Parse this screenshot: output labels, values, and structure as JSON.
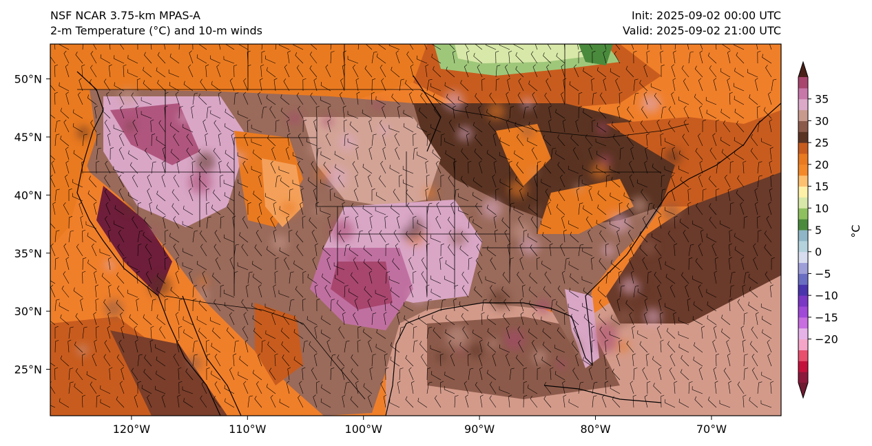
{
  "header": {
    "model": "NSF NCAR 3.75-km MPAS-A",
    "field": "2-m Temperature (°C) and 10-m winds",
    "init": "Init: 2025-09-02 00:00 UTC",
    "valid": "Valid: 2025-09-02 21:00 UTC"
  },
  "map": {
    "lon_range": [
      -127,
      -64
    ],
    "lat_range": [
      21,
      53
    ],
    "lon_ticks": [
      -120,
      -110,
      -100,
      -90,
      -80,
      -70
    ],
    "lon_labels": [
      "120°W",
      "110°W",
      "100°W",
      "90°W",
      "80°W",
      "70°W"
    ],
    "lat_ticks": [
      25,
      30,
      35,
      40,
      45,
      50
    ],
    "lat_labels": [
      "25°N",
      "30°N",
      "35°N",
      "40°N",
      "45°N",
      "50°N"
    ]
  },
  "colorbar": {
    "label": "°C",
    "tick_values": [
      -20,
      -15,
      -10,
      -5,
      0,
      5,
      10,
      15,
      20,
      25,
      30,
      35
    ],
    "tick_labels": [
      "−20",
      "−15",
      "−10",
      "−5",
      "0",
      "5",
      "10",
      "15",
      "20",
      "25",
      "30",
      "35"
    ],
    "levels": [
      -30,
      -27.5,
      -25,
      -22.5,
      -20,
      -17.5,
      -15,
      -12.5,
      -10,
      -7.5,
      -5,
      -2.5,
      0,
      2.5,
      5,
      7.5,
      10,
      12.5,
      15,
      17.5,
      20,
      22.5,
      25,
      27.5,
      30,
      32.5,
      35,
      37.5,
      40
    ],
    "colors": [
      "#8c1a3c",
      "#c4113c",
      "#e8506e",
      "#f5a6c8",
      "#e6b3e8",
      "#c86ee0",
      "#a048d8",
      "#7a36c4",
      "#4a34ad",
      "#6a6ec2",
      "#9e9ed8",
      "#d8dcef",
      "#b4d2dc",
      "#8fb6c6",
      "#4a8a3c",
      "#8fc060",
      "#d8e8a8",
      "#fff0a8",
      "#fdc070",
      "#f4892a",
      "#ea7a20",
      "#c85c1e",
      "#5a3322",
      "#8c5a4a",
      "#c89a8e",
      "#dcaac8",
      "#c878a8",
      "#a8466e",
      "#6e1e3a"
    ],
    "extend_low": "#6e1a30",
    "extend_high": "#4a2018"
  }
}
